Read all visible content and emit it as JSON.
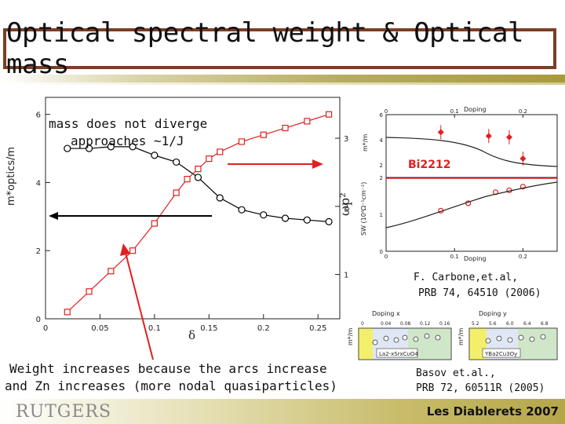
{
  "slide": {
    "title": "Optical spectral weight & Optical mass",
    "footer_logo": "RUTGERS",
    "footer_conference": "Les Diablerets 2007"
  },
  "annotations": {
    "mass_note_line1": "mass does not diverge",
    "mass_note_line2": "approaches ~1/J",
    "weight_note_line1": "Weight increases because the arcs increase",
    "weight_note_line2": "and Zn increases (more nodal quasiparticles)",
    "ref1_line1": "F. Carbone,et.al,",
    "ref1_line2": "PRB 74, 64510 (2006)",
    "ref2_line1": "Basov et.al.,",
    "ref2_line2": "PRB 72, 60511R (2005)",
    "bi_label": "Bi2212",
    "arrow_color": "#e02020"
  },
  "chart_data": [
    {
      "type": "line",
      "xlabel": "δ",
      "ylabel_left": "m*optics/m",
      "ylabel_right": "ωp²",
      "xlim": [
        0,
        0.27
      ],
      "ylim_left": [
        0,
        6.5
      ],
      "ylim_right": [
        0.35,
        3.6
      ],
      "xticks": [
        "0",
        "0.05",
        "0.1",
        "0.15",
        "0.2",
        "0.25"
      ],
      "yticks_left": [
        "0",
        "2",
        "4",
        "6"
      ],
      "yticks_right": [
        "1",
        "2",
        "3"
      ],
      "series": [
        {
          "axis": "left",
          "color": "#000000",
          "marker": "circle",
          "x": [
            0.02,
            0.04,
            0.06,
            0.08,
            0.1,
            0.12,
            0.14,
            0.16,
            0.18,
            0.2,
            0.22,
            0.24,
            0.26
          ],
          "y": [
            5.0,
            5.0,
            5.05,
            5.05,
            4.8,
            4.6,
            4.15,
            3.55,
            3.2,
            3.05,
            2.95,
            2.9,
            2.85
          ]
        },
        {
          "axis": "right",
          "color": "#e02020",
          "marker": "square",
          "x": [
            0.02,
            0.04,
            0.06,
            0.08,
            0.1,
            0.12,
            0.13,
            0.14,
            0.15,
            0.16,
            0.18,
            0.2,
            0.22,
            0.24,
            0.26
          ],
          "y": [
            0.45,
            0.75,
            1.05,
            1.35,
            1.75,
            2.2,
            2.4,
            2.55,
            2.7,
            2.8,
            2.95,
            3.05,
            3.15,
            3.25,
            3.35
          ]
        }
      ]
    },
    {
      "type": "scatter",
      "xlabel": "Doping",
      "xlim": [
        0,
        0.25
      ],
      "xticks": [
        "0",
        "0.1",
        "0.2"
      ],
      "top_panel": {
        "ylabel": "m*/m",
        "ylim": [
          1,
          6
        ],
        "yticks": [
          "2",
          "4",
          "6"
        ],
        "points_x": [
          0.08,
          0.15,
          0.18,
          0.2
        ],
        "points_y": [
          4.6,
          4.3,
          4.2,
          2.5
        ]
      },
      "bottom_panel": {
        "ylabel": "SW (10⁶Ω⁻¹cm⁻²)",
        "ylim": [
          0,
          2
        ],
        "yticks": [
          "0",
          "1",
          "2"
        ],
        "points_x": [
          0.08,
          0.12,
          0.16,
          0.18,
          0.2
        ],
        "points_y": [
          1.1,
          1.3,
          1.6,
          1.65,
          1.75
        ]
      }
    }
  ],
  "inset_labels": {
    "doping_x": "Doping x",
    "doping_y": "Doping y",
    "compound1": "La2-xSrxCuO4",
    "compound2": "YBa2Cu3Oy",
    "x_ticks1": [
      "0",
      "0.04",
      "0.08",
      "0.12",
      "0.16"
    ],
    "x_ticks2": [
      "5.2",
      "5.6",
      "6.0",
      "6.4",
      "6.8"
    ],
    "ylabel1": "m*/m",
    "ylabel2": "m*/m"
  }
}
